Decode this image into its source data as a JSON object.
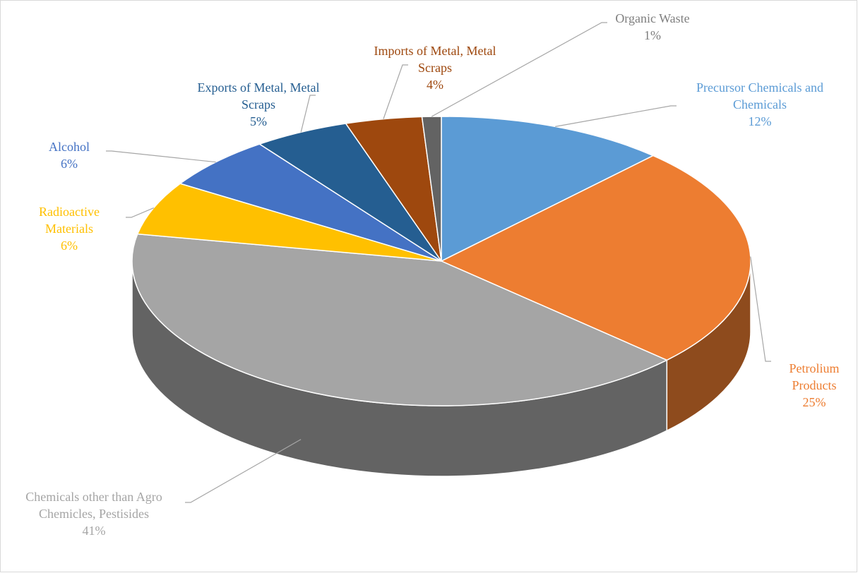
{
  "chart_data": {
    "type": "pie",
    "categories": [
      "Precursor Chemicals and Chemicals",
      "Petrolium Products",
      "Chemicals other than Agro Chemicles, Pestisides",
      "Radioactive Materials",
      "Alcohol",
      "Exports of Metal, Metal Scraps",
      "Imports of Metal, Metal Scraps",
      "Organic Waste"
    ],
    "values": [
      12,
      25,
      41,
      6,
      6,
      5,
      4,
      1
    ],
    "value_labels": [
      "12%",
      "25%",
      "41%",
      "6%",
      "6%",
      "5%",
      "4%",
      "1%"
    ],
    "colors": [
      "#5b9bd5",
      "#ed7d31",
      "#a5a5a5",
      "#ffc000",
      "#4472c4",
      "#255e91",
      "#9e480e",
      "#636363"
    ]
  }
}
